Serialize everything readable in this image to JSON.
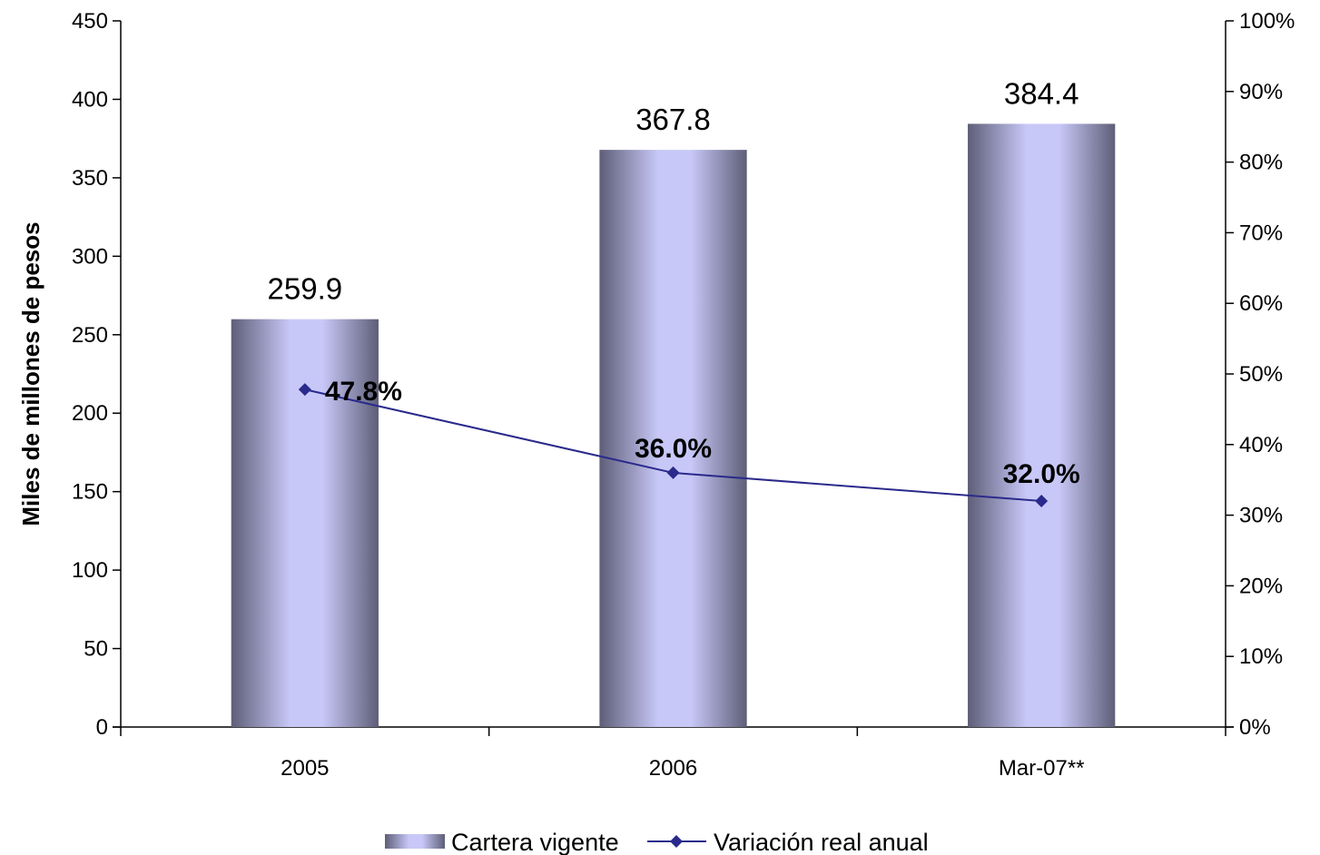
{
  "chart_data": {
    "type": "bar",
    "categories": [
      "2005",
      "2006",
      "Mar-07**"
    ],
    "series": [
      {
        "name": "Cartera vigente",
        "type": "bar",
        "axis": "left",
        "values": [
          259.9,
          367.8,
          384.4
        ],
        "data_labels": [
          "259.9",
          "367.8",
          "384.4"
        ]
      },
      {
        "name": "Variación real anual",
        "type": "line",
        "axis": "right",
        "values": [
          47.8,
          36.0,
          32.0
        ],
        "data_labels": [
          "47.8%",
          "36.0%",
          "32.0%"
        ]
      }
    ],
    "ylabel": "Miles de millones de pesos",
    "ylim": [
      0,
      450
    ],
    "yticks": [
      "0",
      "50",
      "100",
      "150",
      "200",
      "250",
      "300",
      "350",
      "400",
      "450"
    ],
    "y2lim": [
      0,
      100
    ],
    "y2ticks": [
      "0%",
      "10%",
      "20%",
      "30%",
      "40%",
      "50%",
      "60%",
      "70%",
      "80%",
      "90%",
      "100%"
    ],
    "legend_position": "bottom-center",
    "grid": false,
    "colors": {
      "bar_light": "#c8c8f8",
      "bar_dark": "#5e5e78",
      "line": "#2a2a8c",
      "axis": "#000000"
    }
  }
}
